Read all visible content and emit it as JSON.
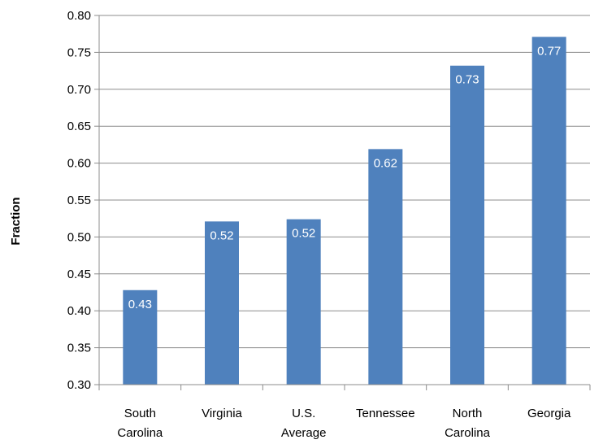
{
  "chart_data": {
    "type": "bar",
    "title": "",
    "xlabel": "",
    "ylabel": "Fraction",
    "ylim": [
      0.3,
      0.8
    ],
    "yticks": [
      "0.30",
      "0.35",
      "0.40",
      "0.45",
      "0.50",
      "0.55",
      "0.60",
      "0.65",
      "0.70",
      "0.75",
      "0.80"
    ],
    "grid": true,
    "legend": "none",
    "bar_color": "#4f81bd",
    "categories": [
      [
        "South",
        "Carolina"
      ],
      [
        "Virginia"
      ],
      [
        "U.S.",
        "Average"
      ],
      [
        "Tennessee"
      ],
      [
        "North",
        "Carolina"
      ],
      [
        "Georgia"
      ]
    ],
    "values": [
      0.428,
      0.521,
      0.524,
      0.619,
      0.732,
      0.771
    ],
    "data_labels": [
      "0.43",
      "0.52",
      "0.52",
      "0.62",
      "0.73",
      "0.77"
    ]
  }
}
